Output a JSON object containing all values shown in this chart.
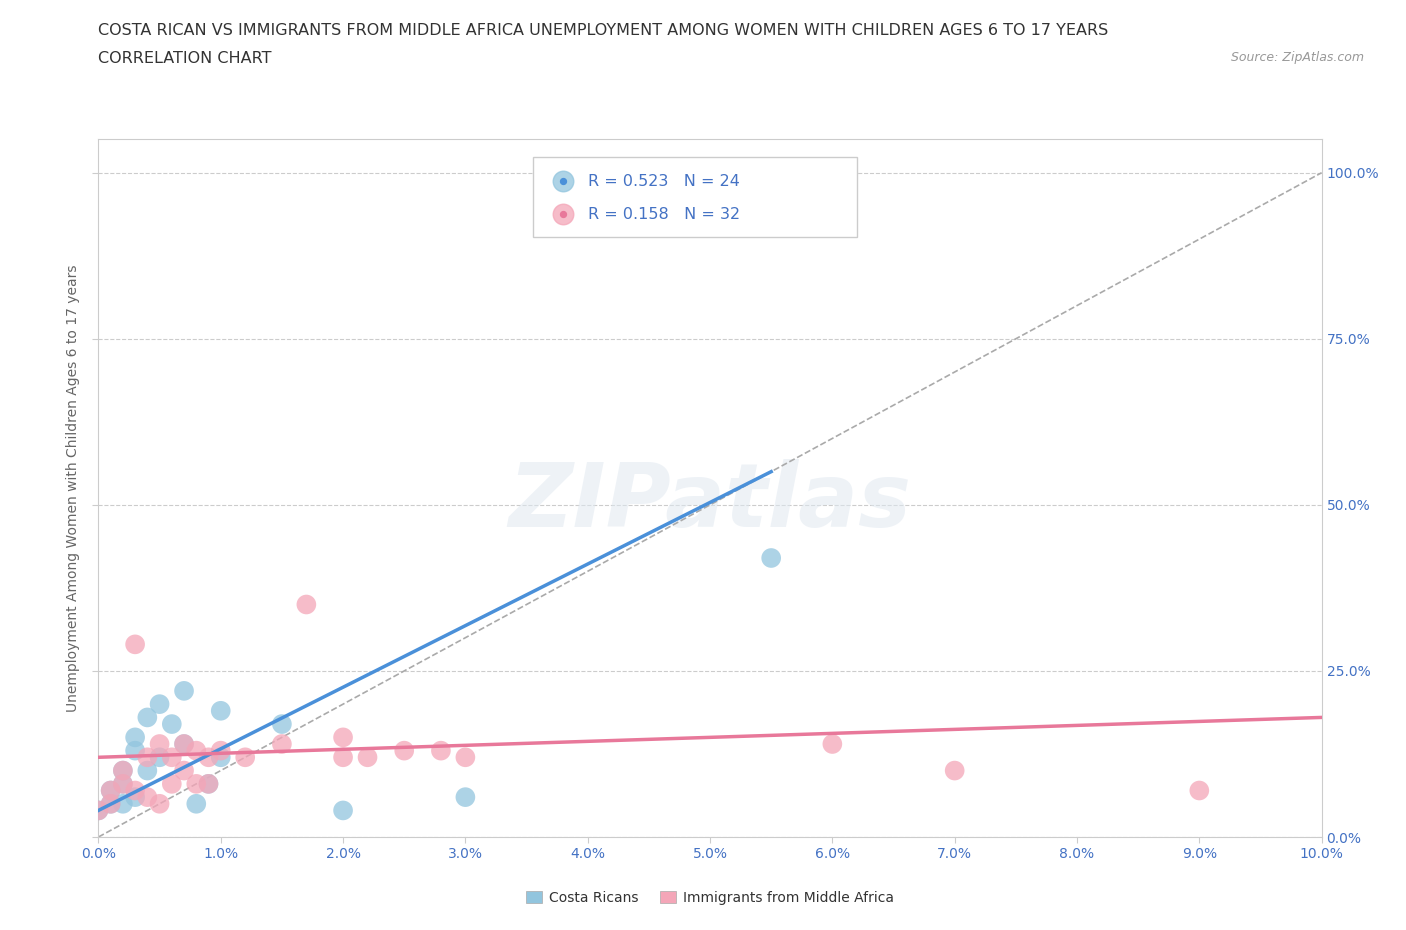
{
  "title_line1": "COSTA RICAN VS IMMIGRANTS FROM MIDDLE AFRICA UNEMPLOYMENT AMONG WOMEN WITH CHILDREN AGES 6 TO 17 YEARS",
  "title_line2": "CORRELATION CHART",
  "source": "Source: ZipAtlas.com",
  "xlabel_ticks": [
    "0.0%",
    "1.0%",
    "2.0%",
    "3.0%",
    "4.0%",
    "5.0%",
    "6.0%",
    "7.0%",
    "8.0%",
    "9.0%",
    "10.0%"
  ],
  "ylabel": "Unemployment Among Women with Children Ages 6 to 17 years",
  "right_yticks": [
    "100.0%",
    "75.0%",
    "50.0%",
    "25.0%",
    "0.0%"
  ],
  "right_ytick_vals": [
    1.0,
    0.75,
    0.5,
    0.25,
    0.0
  ],
  "xlim": [
    0.0,
    0.1
  ],
  "ylim": [
    0.0,
    1.05
  ],
  "color_blue": "#92c5de",
  "color_pink": "#f4a6b8",
  "watermark_text": "ZIPatlas",
  "grid_color": "#cccccc",
  "background_color": "#ffffff",
  "title_fontsize": 11.5,
  "label_fontsize": 10,
  "tick_fontsize": 10,
  "costa_rican_x": [
    0.0,
    0.001,
    0.001,
    0.002,
    0.002,
    0.002,
    0.003,
    0.003,
    0.003,
    0.004,
    0.004,
    0.005,
    0.005,
    0.006,
    0.007,
    0.007,
    0.008,
    0.009,
    0.01,
    0.01,
    0.015,
    0.02,
    0.03,
    0.055
  ],
  "costa_rican_y": [
    0.04,
    0.05,
    0.07,
    0.05,
    0.08,
    0.1,
    0.06,
    0.13,
    0.15,
    0.1,
    0.18,
    0.12,
    0.2,
    0.17,
    0.14,
    0.22,
    0.05,
    0.08,
    0.19,
    0.12,
    0.17,
    0.04,
    0.06,
    0.42
  ],
  "immigrant_x": [
    0.0,
    0.001,
    0.001,
    0.002,
    0.002,
    0.003,
    0.003,
    0.004,
    0.004,
    0.005,
    0.005,
    0.006,
    0.006,
    0.007,
    0.007,
    0.008,
    0.008,
    0.009,
    0.009,
    0.01,
    0.012,
    0.015,
    0.017,
    0.02,
    0.02,
    0.022,
    0.025,
    0.028,
    0.03,
    0.06,
    0.07,
    0.09
  ],
  "immigrant_y": [
    0.04,
    0.05,
    0.07,
    0.08,
    0.1,
    0.07,
    0.29,
    0.06,
    0.12,
    0.05,
    0.14,
    0.12,
    0.08,
    0.1,
    0.14,
    0.13,
    0.08,
    0.12,
    0.08,
    0.13,
    0.12,
    0.14,
    0.35,
    0.12,
    0.15,
    0.12,
    0.13,
    0.13,
    0.12,
    0.14,
    0.1,
    0.07
  ],
  "blue_line_x": [
    0.0,
    0.055
  ],
  "blue_line_y": [
    0.04,
    0.55
  ],
  "pink_line_x": [
    0.0,
    0.1
  ],
  "pink_line_y": [
    0.12,
    0.18
  ],
  "diag_line_x": [
    0.0,
    0.1
  ],
  "diag_line_y": [
    0.0,
    1.0
  ]
}
